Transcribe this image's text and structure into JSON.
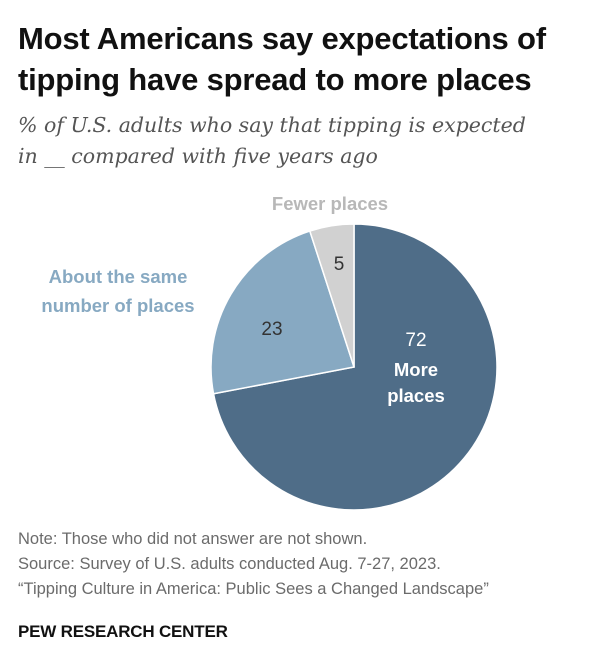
{
  "header": {
    "title_line1": "Most Americans say expectations of",
    "title_line2": "tipping have spread to more places",
    "subtitle_line1": "% of U.S. adults who say that tipping is expected",
    "subtitle_line2": "in __ compared with five years ago"
  },
  "chart_data": {
    "type": "pie",
    "title": "Most Americans say expectations of tipping have spread to more places",
    "subtitle": "% of U.S. adults who say that tipping is expected in __ compared with five years ago",
    "slices": [
      {
        "label_lines": [
          "More",
          "places"
        ],
        "value": 72,
        "color": "#4f6d88",
        "label_color": "#ffffff",
        "value_color": "#ffffff"
      },
      {
        "label_lines": [
          "About the same",
          "number of places"
        ],
        "value": 23,
        "color": "#87a9c2",
        "label_color": "#87a9c2",
        "value_color": "#333333"
      },
      {
        "label_lines": [
          "Fewer places"
        ],
        "value": 5,
        "color": "#d1d1d1",
        "label_color": "#b8b8b8",
        "value_color": "#333333"
      }
    ],
    "legend": "none"
  },
  "footer": {
    "note": "Note: Those who did not answer are not shown.",
    "source": "Source: Survey of U.S. adults conducted Aug. 7-27, 2023.",
    "report": "“Tipping Culture in America: Public Sees a Changed Landscape”",
    "brand": "PEW RESEARCH CENTER"
  }
}
